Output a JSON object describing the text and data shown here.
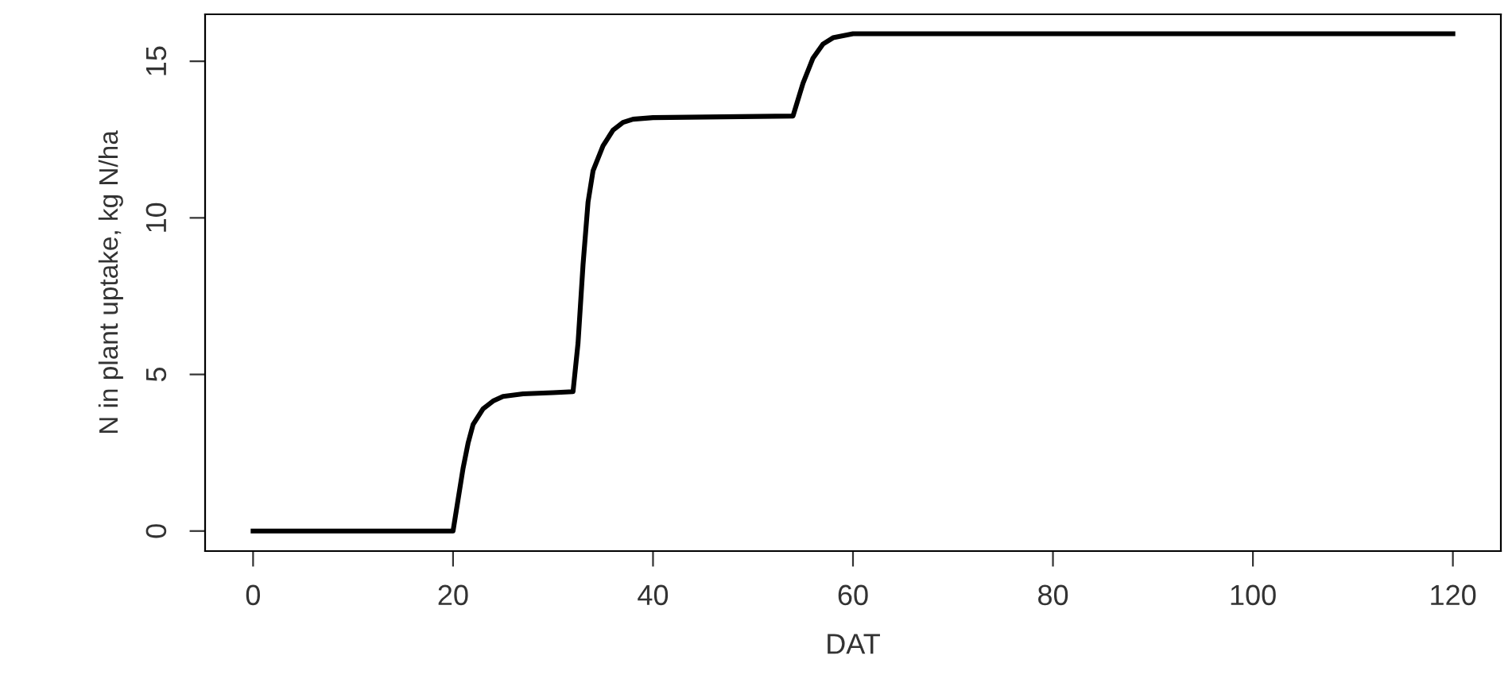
{
  "chart_data": {
    "type": "line",
    "xlabel": "DAT",
    "ylabel": "N in plant uptake, kg N/ha",
    "x": [
      0,
      20,
      20.5,
      21,
      21.5,
      22,
      23,
      24,
      25,
      27,
      30,
      32,
      32.5,
      33,
      33.5,
      34,
      35,
      36,
      37,
      38,
      40,
      54,
      55,
      56,
      57,
      58,
      60,
      120
    ],
    "series": [
      {
        "color": "#000000",
        "values": [
          0,
          0,
          1,
          2,
          2.8,
          3.4,
          3.9,
          4.15,
          4.3,
          4.38,
          4.42,
          4.45,
          6,
          8.5,
          10.5,
          11.5,
          12.3,
          12.8,
          13.05,
          13.15,
          13.2,
          13.25,
          14.3,
          15.1,
          15.55,
          15.75,
          15.88,
          15.88
        ]
      }
    ],
    "xlim": [
      -4.8,
      124.8
    ],
    "ylim": [
      -0.64,
      16.5
    ],
    "xticks": [
      0,
      20,
      40,
      60,
      80,
      100,
      120
    ],
    "yticks": [
      0,
      5,
      10,
      15
    ],
    "grid": false,
    "legend": false,
    "marker": "none",
    "line_style": "solid"
  }
}
